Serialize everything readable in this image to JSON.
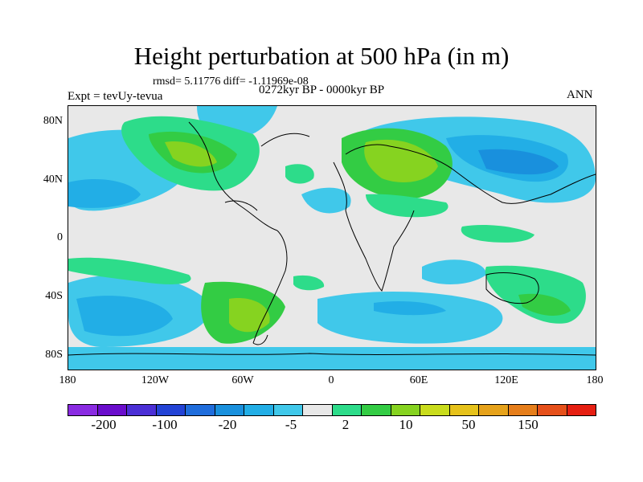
{
  "title": "Height perturbation at 500 hPa (in m)",
  "stats": "rmsd= 5.11776 diff= -1.11969e-08",
  "expt": "Expt = tevUy-tevua",
  "period": "0272kyr BP - 0000kyr BP",
  "season": "ANN",
  "y_labels": [
    "80N",
    "40N",
    "0",
    "40S",
    "80S"
  ],
  "x_labels": [
    "180",
    "120W",
    "60W",
    "0",
    "60E",
    "120E",
    "180"
  ],
  "colorbar": {
    "colors": [
      "#8a2be2",
      "#6a0dcc",
      "#4b2fd6",
      "#2343d6",
      "#1f6ddc",
      "#1990dd",
      "#22aee6",
      "#40c8ea",
      "#e8e8e8",
      "#2ddc8a",
      "#33cc44",
      "#86d320",
      "#c9dc1c",
      "#e6c21a",
      "#e6a21a",
      "#e67e1a",
      "#e6501a",
      "#e61f12"
    ],
    "labels": [
      "-200",
      "-100",
      "-20",
      "-5",
      "2",
      "10",
      "50",
      "150"
    ]
  }
}
